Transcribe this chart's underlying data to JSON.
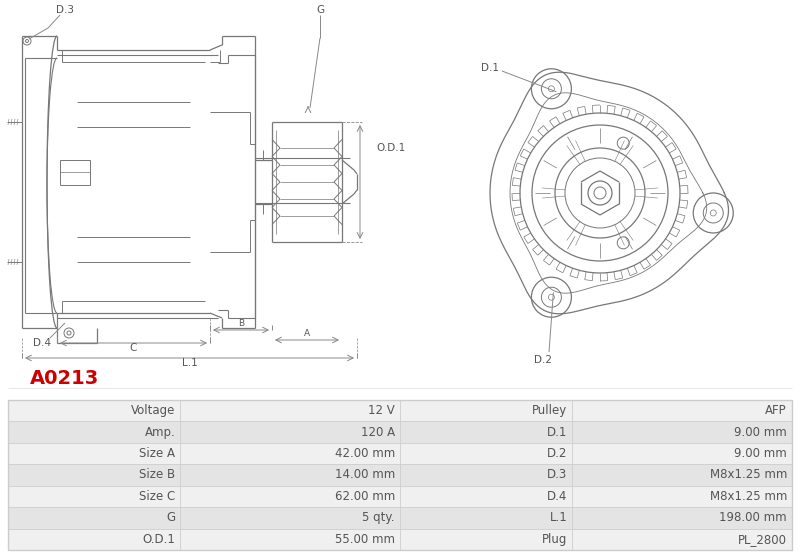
{
  "title_code": "A0213",
  "title_color": "#cc0000",
  "background_color": "#ffffff",
  "table_data": [
    [
      "Voltage",
      "12 V",
      "Pulley",
      "AFP"
    ],
    [
      "Amp.",
      "120 A",
      "D.1",
      "9.00 mm"
    ],
    [
      "Size A",
      "42.00 mm",
      "D.2",
      "9.00 mm"
    ],
    [
      "Size B",
      "14.00 mm",
      "D.3",
      "M8x1.25 mm"
    ],
    [
      "Size C",
      "62.00 mm",
      "D.4",
      "M8x1.25 mm"
    ],
    [
      "G",
      "5 qty.",
      "L.1",
      "198.00 mm"
    ],
    [
      "O.D.1",
      "55.00 mm",
      "Plug",
      "PL_2800"
    ]
  ],
  "table_row_bg_odd": "#f0f0f0",
  "table_row_bg_even": "#e4e4e4",
  "table_text_color": "#555555",
  "border_color": "#cccccc",
  "line_color": "#777777",
  "dim_color": "#888888"
}
